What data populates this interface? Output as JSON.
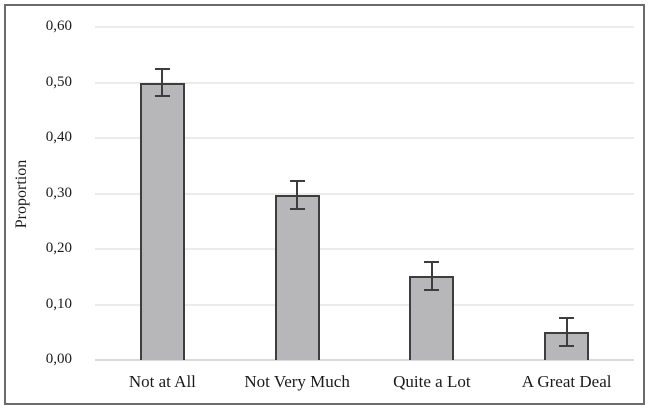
{
  "figure": {
    "background": "#ffffff",
    "frame_color": "#6b6b6b"
  },
  "chart_data": {
    "type": "bar",
    "title": "",
    "xlabel": "",
    "ylabel": "Proportion",
    "categories": [
      "Not at All",
      "Not Very Much",
      "Quite a Lot",
      "A Great Deal"
    ],
    "values": [
      0.5,
      0.297,
      0.151,
      0.05
    ],
    "errors": [
      0.025,
      0.025,
      0.025,
      0.025
    ],
    "ylim": [
      0,
      0.6
    ],
    "ytick_step": 0.1,
    "ytick_labels": [
      "0,00",
      "0,10",
      "0,20",
      "0,30",
      "0,40",
      "0,50",
      "0,60"
    ],
    "decimal_separator": ",",
    "grid": "horizontal",
    "legend": "none",
    "error_bars": "symmetric-vertical",
    "colors": {
      "bar_fill": "#b7b7b9",
      "bar_border": "#3d3d3d",
      "error_bar": "#3d3d3d",
      "gridline": "#ebebeb",
      "axis_line": "#d9d9d9",
      "text": "#1a1a1a"
    }
  }
}
